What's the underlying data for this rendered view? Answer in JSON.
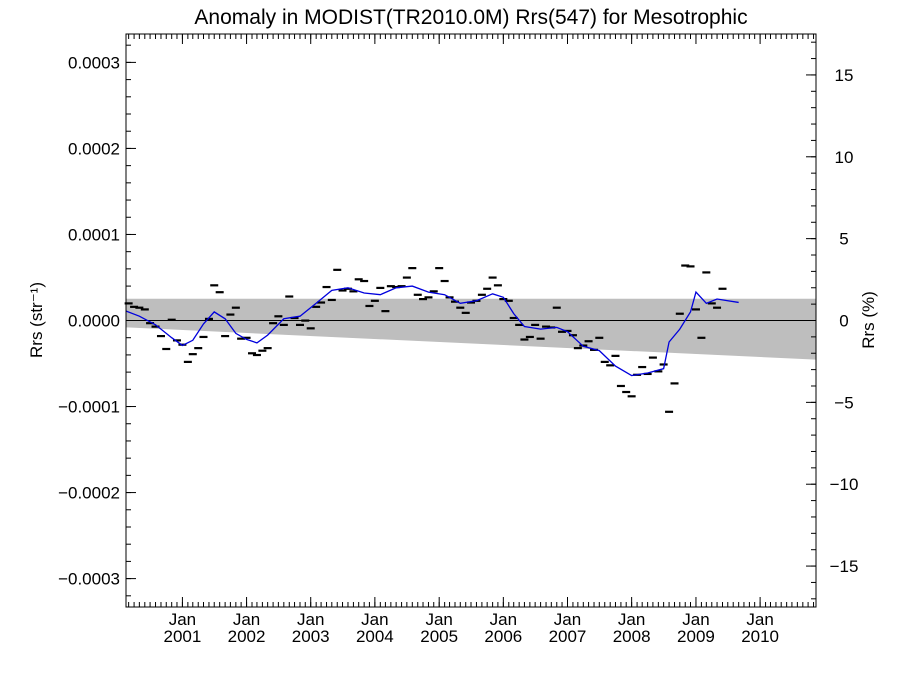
{
  "chart_data": {
    "type": "scatter",
    "title": "Anomaly in MODIST(TR2010.0M) Rrs(547) for Mesotrophic",
    "ylabel_left": "Rrs (str⁻¹)",
    "ylabel_right": "Rrs (%)",
    "xlim": [
      "2000-02-15",
      "2010-11-15"
    ],
    "ylim": [
      -0.000333,
      0.000333
    ],
    "y2lim": [
      -17.5,
      17.5
    ],
    "grid": false,
    "yticks_left": [
      {
        "value": 0.0003,
        "label": "0.0003"
      },
      {
        "value": 0.0002,
        "label": "0.0002"
      },
      {
        "value": 0.0001,
        "label": "0.0001"
      },
      {
        "value": 0.0,
        "label": "0.0000"
      },
      {
        "value": -0.0001,
        "label": "−0.0001"
      },
      {
        "value": -0.0002,
        "label": "−0.0002"
      },
      {
        "value": -0.0003,
        "label": "−0.0003"
      }
    ],
    "yticks_right": [
      {
        "value": 15,
        "label": "15"
      },
      {
        "value": 10,
        "label": "10"
      },
      {
        "value": 5,
        "label": "5"
      },
      {
        "value": 0,
        "label": "0"
      },
      {
        "value": -5,
        "label": "−5"
      },
      {
        "value": -10,
        "label": "−10"
      },
      {
        "value": -15,
        "label": "−15"
      }
    ],
    "xticks": [
      {
        "date": "2001-01-01",
        "label": "Jan",
        "year": "2001"
      },
      {
        "date": "2002-01-01",
        "label": "Jan",
        "year": "2002"
      },
      {
        "date": "2003-01-01",
        "label": "Jan",
        "year": "2003"
      },
      {
        "date": "2004-01-01",
        "label": "Jan",
        "year": "2004"
      },
      {
        "date": "2005-01-01",
        "label": "Jan",
        "year": "2005"
      },
      {
        "date": "2006-01-01",
        "label": "Jan",
        "year": "2006"
      },
      {
        "date": "2007-01-01",
        "label": "Jan",
        "year": "2007"
      },
      {
        "date": "2008-01-01",
        "label": "Jan",
        "year": "2008"
      },
      {
        "date": "2009-01-01",
        "label": "Jan",
        "year": "2009"
      },
      {
        "date": "2010-01-01",
        "label": "Jan",
        "year": "2010"
      }
    ],
    "band": {
      "start": "2000-02-15",
      "end": "2010-11-15",
      "upper": [
        2.53e-05,
        2.53e-05
      ],
      "lower": [
        -8e-06,
        -4.55e-05
      ]
    },
    "zero_line": 0,
    "monthly_anomaly": [
      {
        "date": "2000-03-01",
        "y": 2e-05
      },
      {
        "date": "2000-04-01",
        "y": 1.6e-05
      },
      {
        "date": "2000-05-01",
        "y": 1.5e-05
      },
      {
        "date": "2000-06-01",
        "y": 1.3e-05
      },
      {
        "date": "2000-07-01",
        "y": -3e-06
      },
      {
        "date": "2000-08-01",
        "y": -7e-06
      },
      {
        "date": "2000-09-01",
        "y": -1.8e-05
      },
      {
        "date": "2000-10-01",
        "y": -3.3e-05
      },
      {
        "date": "2000-11-01",
        "y": 1e-06
      },
      {
        "date": "2000-12-01",
        "y": -2.3e-05
      },
      {
        "date": "2001-01-01",
        "y": -2.8e-05
      },
      {
        "date": "2001-02-01",
        "y": -4.8e-05
      },
      {
        "date": "2001-03-01",
        "y": -3.9e-05
      },
      {
        "date": "2001-04-01",
        "y": -3.2e-05
      },
      {
        "date": "2001-05-01",
        "y": -1.9e-05
      },
      {
        "date": "2001-06-01",
        "y": 2e-06
      },
      {
        "date": "2001-07-01",
        "y": 4.1e-05
      },
      {
        "date": "2001-08-01",
        "y": 3.3e-05
      },
      {
        "date": "2001-09-01",
        "y": -1.8e-05
      },
      {
        "date": "2001-10-01",
        "y": 7e-06
      },
      {
        "date": "2001-11-01",
        "y": 1.5e-05
      },
      {
        "date": "2001-12-01",
        "y": -2.1e-05
      },
      {
        "date": "2002-01-01",
        "y": -2e-05
      },
      {
        "date": "2002-02-01",
        "y": -3.8e-05
      },
      {
        "date": "2002-03-01",
        "y": -4e-05
      },
      {
        "date": "2002-04-01",
        "y": -3.5e-05
      },
      {
        "date": "2002-05-01",
        "y": -3.2e-05
      },
      {
        "date": "2002-06-01",
        "y": -3e-06
      },
      {
        "date": "2002-07-01",
        "y": 5e-06
      },
      {
        "date": "2002-08-01",
        "y": -5e-06
      },
      {
        "date": "2002-09-01",
        "y": 2.8e-05
      },
      {
        "date": "2002-10-01",
        "y": 3e-06
      },
      {
        "date": "2002-11-01",
        "y": -5e-06
      },
      {
        "date": "2002-12-01",
        "y": 0.0
      },
      {
        "date": "2003-01-01",
        "y": -9e-06
      },
      {
        "date": "2003-02-01",
        "y": 1.6e-05
      },
      {
        "date": "2003-03-01",
        "y": 2.1e-05
      },
      {
        "date": "2003-04-01",
        "y": 3.9e-05
      },
      {
        "date": "2003-05-01",
        "y": 2.4e-05
      },
      {
        "date": "2003-06-01",
        "y": 5.9e-05
      },
      {
        "date": "2003-07-01",
        "y": 3.5e-05
      },
      {
        "date": "2003-08-01",
        "y": 3.7e-05
      },
      {
        "date": "2003-09-01",
        "y": 3.4e-05
      },
      {
        "date": "2003-10-01",
        "y": 4.8e-05
      },
      {
        "date": "2003-11-01",
        "y": 4.6e-05
      },
      {
        "date": "2003-12-01",
        "y": 1.7e-05
      },
      {
        "date": "2004-01-01",
        "y": 2.3e-05
      },
      {
        "date": "2004-02-01",
        "y": 3.8e-05
      },
      {
        "date": "2004-03-01",
        "y": 1.1e-05
      },
      {
        "date": "2004-04-01",
        "y": 4e-05
      },
      {
        "date": "2004-05-01",
        "y": 3.9e-05
      },
      {
        "date": "2004-06-01",
        "y": 4e-05
      },
      {
        "date": "2004-07-01",
        "y": 5e-05
      },
      {
        "date": "2004-08-01",
        "y": 6.1e-05
      },
      {
        "date": "2004-09-01",
        "y": 3e-05
      },
      {
        "date": "2004-10-01",
        "y": 2.5e-05
      },
      {
        "date": "2004-11-01",
        "y": 2.7e-05
      },
      {
        "date": "2004-12-01",
        "y": 3.4e-05
      },
      {
        "date": "2005-01-01",
        "y": 6.1e-05
      },
      {
        "date": "2005-02-01",
        "y": 4.6e-05
      },
      {
        "date": "2005-03-01",
        "y": 2.7e-05
      },
      {
        "date": "2005-04-01",
        "y": 2.2e-05
      },
      {
        "date": "2005-05-01",
        "y": 1.5e-05
      },
      {
        "date": "2005-06-01",
        "y": 9e-06
      },
      {
        "date": "2005-07-01",
        "y": 2.1e-05
      },
      {
        "date": "2005-08-01",
        "y": 2.3e-05
      },
      {
        "date": "2005-09-01",
        "y": 3e-05
      },
      {
        "date": "2005-10-01",
        "y": 3.7e-05
      },
      {
        "date": "2005-11-01",
        "y": 5e-05
      },
      {
        "date": "2005-12-01",
        "y": 4.1e-05
      },
      {
        "date": "2006-01-01",
        "y": 2.5e-05
      },
      {
        "date": "2006-02-01",
        "y": 2.3e-05
      },
      {
        "date": "2006-03-01",
        "y": 3e-06
      },
      {
        "date": "2006-04-01",
        "y": -5e-06
      },
      {
        "date": "2006-05-01",
        "y": -2.2e-05
      },
      {
        "date": "2006-06-01",
        "y": -1.9e-05
      },
      {
        "date": "2006-07-01",
        "y": -5e-06
      },
      {
        "date": "2006-08-01",
        "y": -2.1e-05
      },
      {
        "date": "2006-09-01",
        "y": -7e-06
      },
      {
        "date": "2006-10-01",
        "y": -8e-06
      },
      {
        "date": "2006-11-01",
        "y": 1.5e-05
      },
      {
        "date": "2006-12-01",
        "y": -1.3e-05
      },
      {
        "date": "2007-01-01",
        "y": -1.2e-05
      },
      {
        "date": "2007-02-01",
        "y": -1.7e-05
      },
      {
        "date": "2007-03-01",
        "y": -3.2e-05
      },
      {
        "date": "2007-04-01",
        "y": -2.9e-05
      },
      {
        "date": "2007-05-01",
        "y": -2.4e-05
      },
      {
        "date": "2007-06-01",
        "y": -3.4e-05
      },
      {
        "date": "2007-07-01",
        "y": -2e-05
      },
      {
        "date": "2007-08-01",
        "y": -4.8e-05
      },
      {
        "date": "2007-09-01",
        "y": -5.2e-05
      },
      {
        "date": "2007-10-01",
        "y": -4.1e-05
      },
      {
        "date": "2007-11-01",
        "y": -7.6e-05
      },
      {
        "date": "2007-12-01",
        "y": -8.3e-05
      },
      {
        "date": "2008-01-01",
        "y": -8.8e-05
      },
      {
        "date": "2008-02-01",
        "y": -6.3e-05
      },
      {
        "date": "2008-03-01",
        "y": -5.4e-05
      },
      {
        "date": "2008-04-01",
        "y": -6.2e-05
      },
      {
        "date": "2008-05-01",
        "y": -4.3e-05
      },
      {
        "date": "2008-06-01",
        "y": -5.9e-05
      },
      {
        "date": "2008-07-01",
        "y": -5.1e-05
      },
      {
        "date": "2008-08-01",
        "y": -0.000106
      },
      {
        "date": "2008-09-01",
        "y": -7.3e-05
      },
      {
        "date": "2008-10-01",
        "y": 8e-06
      },
      {
        "date": "2008-11-01",
        "y": 6.4e-05
      },
      {
        "date": "2008-12-01",
        "y": 6.3e-05
      },
      {
        "date": "2009-01-01",
        "y": 1.3e-05
      },
      {
        "date": "2009-02-01",
        "y": -2e-05
      },
      {
        "date": "2009-03-01",
        "y": 5.6e-05
      },
      {
        "date": "2009-04-01",
        "y": 2e-05
      },
      {
        "date": "2009-05-01",
        "y": 1.5e-05
      },
      {
        "date": "2009-06-01",
        "y": 3.7e-05
      }
    ],
    "running_mean": {
      "color": "#0000dd",
      "points": [
        {
          "date": "2000-02-15",
          "y": 1.1e-05
        },
        {
          "date": "2000-05-01",
          "y": 5e-06
        },
        {
          "date": "2000-08-01",
          "y": -5e-06
        },
        {
          "date": "2000-11-01",
          "y": -2e-05
        },
        {
          "date": "2001-01-01",
          "y": -2.9e-05
        },
        {
          "date": "2001-03-01",
          "y": -2.3e-05
        },
        {
          "date": "2001-05-01",
          "y": -4e-06
        },
        {
          "date": "2001-07-01",
          "y": 1e-05
        },
        {
          "date": "2001-09-01",
          "y": 2e-06
        },
        {
          "date": "2001-11-01",
          "y": -1.5e-05
        },
        {
          "date": "2002-01-01",
          "y": -2.2e-05
        },
        {
          "date": "2002-03-01",
          "y": -2.6e-05
        },
        {
          "date": "2002-05-01",
          "y": -1.7e-05
        },
        {
          "date": "2002-08-01",
          "y": 2e-06
        },
        {
          "date": "2002-11-01",
          "y": 5e-06
        },
        {
          "date": "2003-02-01",
          "y": 2e-05
        },
        {
          "date": "2003-05-01",
          "y": 3.5e-05
        },
        {
          "date": "2003-08-01",
          "y": 3.8e-05
        },
        {
          "date": "2003-11-01",
          "y": 3.2e-05
        },
        {
          "date": "2004-02-01",
          "y": 3e-05
        },
        {
          "date": "2004-05-01",
          "y": 3.8e-05
        },
        {
          "date": "2004-08-01",
          "y": 4e-05
        },
        {
          "date": "2004-11-01",
          "y": 3.3e-05
        },
        {
          "date": "2005-02-01",
          "y": 3e-05
        },
        {
          "date": "2005-05-01",
          "y": 2e-05
        },
        {
          "date": "2005-08-01",
          "y": 2.3e-05
        },
        {
          "date": "2005-11-01",
          "y": 3.1e-05
        },
        {
          "date": "2006-01-01",
          "y": 2.7e-05
        },
        {
          "date": "2006-03-01",
          "y": 8e-06
        },
        {
          "date": "2006-05-01",
          "y": -7e-06
        },
        {
          "date": "2006-08-01",
          "y": -1e-05
        },
        {
          "date": "2006-11-01",
          "y": -8e-06
        },
        {
          "date": "2007-01-01",
          "y": -1.3e-05
        },
        {
          "date": "2007-04-01",
          "y": -3e-05
        },
        {
          "date": "2007-07-01",
          "y": -3.5e-05
        },
        {
          "date": "2007-10-01",
          "y": -5.3e-05
        },
        {
          "date": "2008-01-01",
          "y": -6.4e-05
        },
        {
          "date": "2008-04-01",
          "y": -6.1e-05
        },
        {
          "date": "2008-07-01",
          "y": -5.6e-05
        },
        {
          "date": "2008-08-01",
          "y": -2.5e-05
        },
        {
          "date": "2008-10-01",
          "y": -1e-05
        },
        {
          "date": "2008-12-01",
          "y": 1e-05
        },
        {
          "date": "2009-01-01",
          "y": 3.3e-05
        },
        {
          "date": "2009-03-01",
          "y": 2e-05
        },
        {
          "date": "2009-05-01",
          "y": 2.5e-05
        },
        {
          "date": "2009-07-01",
          "y": 2.3e-05
        },
        {
          "date": "2009-09-01",
          "y": 2.1e-05
        }
      ]
    }
  }
}
